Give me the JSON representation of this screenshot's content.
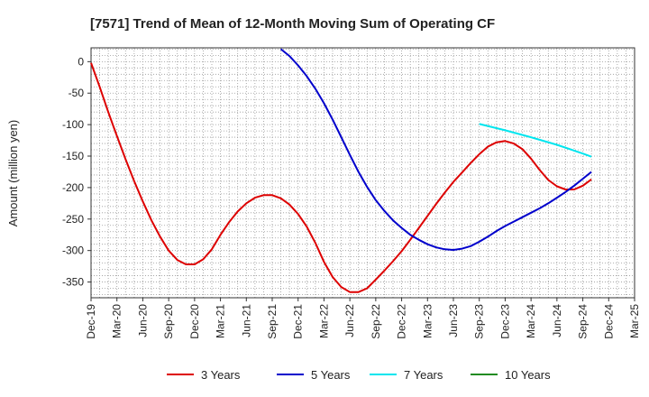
{
  "chart_data": {
    "type": "line",
    "title": "[7571]  Trend of Mean of 12-Month Moving Sum of Operating CF",
    "xlabel": "",
    "ylabel": "Amount (million yen)",
    "ylim": [
      -375,
      22
    ],
    "yticks": [
      0,
      -50,
      -100,
      -150,
      -200,
      -250,
      -300,
      -350
    ],
    "x_tick_labels": [
      "Dec-19",
      "Mar-20",
      "Jun-20",
      "Sep-20",
      "Dec-20",
      "Mar-21",
      "Jun-21",
      "Sep-21",
      "Dec-21",
      "Mar-22",
      "Jun-22",
      "Sep-22",
      "Dec-22",
      "Mar-23",
      "Jun-23",
      "Sep-23",
      "Dec-23",
      "Mar-24",
      "Jun-24",
      "Sep-24",
      "Dec-24",
      "Mar-25"
    ],
    "x_months_total": 63,
    "grid": true,
    "legend_position": "bottom",
    "series": [
      {
        "name": "3 Years",
        "color": "#dd0000",
        "points": [
          [
            0,
            -2
          ],
          [
            1,
            -40
          ],
          [
            2,
            -80
          ],
          [
            3,
            -118
          ],
          [
            4,
            -155
          ],
          [
            5,
            -190
          ],
          [
            6,
            -222
          ],
          [
            7,
            -252
          ],
          [
            8,
            -278
          ],
          [
            9,
            -300
          ],
          [
            10,
            -315
          ],
          [
            11,
            -322
          ],
          [
            12,
            -322
          ],
          [
            13,
            -314
          ],
          [
            14,
            -298
          ],
          [
            15,
            -275
          ],
          [
            16,
            -255
          ],
          [
            17,
            -238
          ],
          [
            18,
            -225
          ],
          [
            19,
            -216
          ],
          [
            20,
            -212
          ],
          [
            21,
            -212
          ],
          [
            22,
            -217
          ],
          [
            23,
            -227
          ],
          [
            24,
            -242
          ],
          [
            25,
            -262
          ],
          [
            26,
            -288
          ],
          [
            27,
            -318
          ],
          [
            28,
            -342
          ],
          [
            29,
            -358
          ],
          [
            30,
            -366
          ],
          [
            31,
            -366
          ],
          [
            32,
            -360
          ],
          [
            33,
            -346
          ],
          [
            34,
            -332
          ],
          [
            35,
            -317
          ],
          [
            36,
            -301
          ],
          [
            37,
            -283
          ],
          [
            38,
            -264
          ],
          [
            39,
            -245
          ],
          [
            40,
            -226
          ],
          [
            41,
            -208
          ],
          [
            42,
            -191
          ],
          [
            43,
            -176
          ],
          [
            44,
            -161
          ],
          [
            45,
            -147
          ],
          [
            46,
            -135
          ],
          [
            47,
            -128
          ],
          [
            48,
            -126
          ],
          [
            49,
            -130
          ],
          [
            50,
            -139
          ],
          [
            51,
            -154
          ],
          [
            52,
            -172
          ],
          [
            53,
            -188
          ],
          [
            54,
            -198
          ],
          [
            55,
            -203
          ],
          [
            56,
            -203
          ],
          [
            57,
            -197
          ],
          [
            58,
            -187
          ]
        ]
      },
      {
        "name": "5 Years",
        "color": "#0000cc",
        "points": [
          [
            22,
            20
          ],
          [
            23,
            9
          ],
          [
            24,
            -6
          ],
          [
            25,
            -23
          ],
          [
            26,
            -43
          ],
          [
            27,
            -66
          ],
          [
            28,
            -92
          ],
          [
            29,
            -120
          ],
          [
            30,
            -148
          ],
          [
            31,
            -175
          ],
          [
            32,
            -199
          ],
          [
            33,
            -220
          ],
          [
            34,
            -237
          ],
          [
            35,
            -252
          ],
          [
            36,
            -264
          ],
          [
            37,
            -275
          ],
          [
            38,
            -283
          ],
          [
            39,
            -290
          ],
          [
            40,
            -295
          ],
          [
            41,
            -298
          ],
          [
            42,
            -299
          ],
          [
            43,
            -297
          ],
          [
            44,
            -293
          ],
          [
            45,
            -286
          ],
          [
            46,
            -278
          ],
          [
            47,
            -269
          ],
          [
            48,
            -261
          ],
          [
            49,
            -254
          ],
          [
            50,
            -247
          ],
          [
            51,
            -240
          ],
          [
            52,
            -233
          ],
          [
            53,
            -225
          ],
          [
            54,
            -216
          ],
          [
            55,
            -207
          ],
          [
            56,
            -197
          ],
          [
            57,
            -186
          ],
          [
            58,
            -175
          ]
        ]
      },
      {
        "name": "7 Years",
        "color": "#00e5ee",
        "points": [
          [
            45,
            -99
          ],
          [
            48,
            -109
          ],
          [
            51,
            -120
          ],
          [
            54,
            -132
          ],
          [
            57,
            -146
          ],
          [
            58,
            -151
          ]
        ]
      },
      {
        "name": "10 Years",
        "color": "#228b22",
        "points": []
      }
    ]
  }
}
